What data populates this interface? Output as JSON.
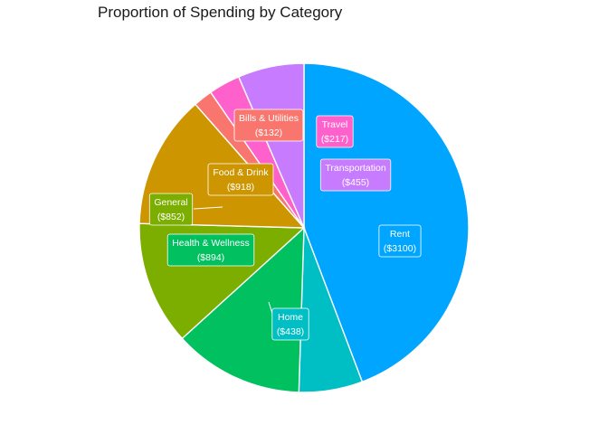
{
  "chart_data": {
    "type": "pie",
    "title": "Proportion of Spending by Category",
    "start": "12 o'clock",
    "direction": "clockwise",
    "slices": [
      {
        "category": "Rent",
        "value": 3100,
        "display": "($3100)",
        "color": "#00A5FF"
      },
      {
        "category": "Home",
        "value": 438,
        "display": "($438)",
        "color": "#00BFC4"
      },
      {
        "category": "Health & Wellness",
        "value": 894,
        "display": "($894)",
        "color": "#00C060"
      },
      {
        "category": "General",
        "value": 852,
        "display": "($852)",
        "color": "#7CAE00"
      },
      {
        "category": "Food & Drink",
        "value": 918,
        "display": "($918)",
        "color": "#CD9600"
      },
      {
        "category": "Bills & Utilities",
        "value": 132,
        "display": "($132)",
        "color": "#F8766D"
      },
      {
        "category": "Travel",
        "value": 217,
        "display": "($217)",
        "color": "#FF61CC"
      },
      {
        "category": "Transportation",
        "value": 455,
        "display": "($455)",
        "color": "#C77CFF"
      }
    ]
  }
}
